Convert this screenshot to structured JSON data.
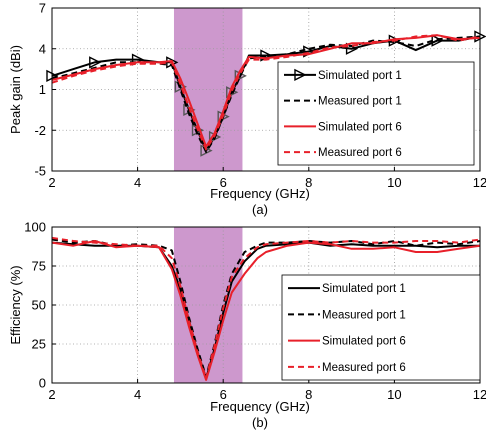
{
  "chart_data": [
    {
      "type": "line",
      "panel_label": "(a)",
      "xlabel": "Frequency (GHz)",
      "ylabel": "Peak gain (dBi)",
      "xlim": [
        2,
        12
      ],
      "ylim": [
        -5,
        7
      ],
      "xticks": [
        2,
        4,
        6,
        8,
        10,
        12
      ],
      "yticks": [
        -5,
        -2,
        1,
        4,
        7
      ],
      "grid": true,
      "legend_position": "bottom-right",
      "shaded_band": {
        "from": 4.85,
        "to": 6.45,
        "color": "#c486c4"
      },
      "series": [
        {
          "name": "Simulated port 1",
          "color": "#000000",
          "style": "solid",
          "marker": "triangle-right",
          "x": [
            2,
            2.5,
            3,
            3.5,
            4,
            4.5,
            4.8,
            5.0,
            5.2,
            5.4,
            5.6,
            5.8,
            6.0,
            6.2,
            6.4,
            6.6,
            7,
            7.5,
            8,
            8.5,
            9,
            9.5,
            10,
            10.5,
            11,
            11.5,
            12
          ],
          "y": [
            2.0,
            2.5,
            3.0,
            3.2,
            3.2,
            3.0,
            3.0,
            1.2,
            -0.5,
            -2.0,
            -3.5,
            -2.5,
            -1.0,
            0.8,
            2.0,
            3.5,
            3.5,
            3.6,
            3.8,
            4.2,
            4.0,
            4.4,
            4.6,
            3.9,
            4.6,
            4.6,
            4.9
          ]
        },
        {
          "name": "Measured port 1",
          "color": "#000000",
          "style": "dashed",
          "marker": "none",
          "x": [
            2,
            2.5,
            3,
            3.5,
            4,
            4.5,
            4.8,
            5.0,
            5.2,
            5.4,
            5.6,
            5.8,
            6.0,
            6.2,
            6.4,
            6.6,
            7,
            7.5,
            8,
            8.5,
            9,
            9.5,
            10,
            10.5,
            11,
            11.5,
            12
          ],
          "y": [
            1.8,
            2.2,
            2.6,
            3.0,
            3.0,
            2.9,
            2.8,
            1.0,
            -0.8,
            -2.3,
            -3.6,
            -2.6,
            -1.0,
            0.6,
            2.0,
            3.3,
            3.4,
            3.6,
            4.0,
            4.3,
            4.2,
            4.6,
            4.5,
            4.2,
            4.7,
            4.8,
            4.9
          ]
        },
        {
          "name": "Simulated port 6",
          "color": "#e8202a",
          "style": "solid",
          "marker": "none",
          "x": [
            2,
            2.5,
            3,
            3.5,
            4,
            4.5,
            4.8,
            5.0,
            5.2,
            5.4,
            5.6,
            5.8,
            6.0,
            6.2,
            6.4,
            6.6,
            7,
            7.5,
            8,
            8.5,
            9,
            9.5,
            10,
            10.5,
            11,
            11.5,
            12
          ],
          "y": [
            1.7,
            2.1,
            2.5,
            2.8,
            3.0,
            3.0,
            3.1,
            1.8,
            0.2,
            -1.5,
            -3.2,
            -2.2,
            -0.6,
            1.2,
            2.4,
            3.4,
            3.3,
            3.5,
            3.6,
            4.0,
            4.4,
            4.4,
            4.7,
            4.8,
            5.0,
            4.7,
            4.8
          ]
        },
        {
          "name": "Measured port 6",
          "color": "#e8202a",
          "style": "dashed",
          "marker": "none",
          "x": [
            2,
            2.5,
            3,
            3.5,
            4,
            4.5,
            4.8,
            5.0,
            5.2,
            5.4,
            5.6,
            5.8,
            6.0,
            6.2,
            6.4,
            6.6,
            7,
            7.5,
            8,
            8.5,
            9,
            9.5,
            10,
            10.5,
            11,
            11.5,
            12
          ],
          "y": [
            1.5,
            2.0,
            2.4,
            2.7,
            2.9,
            2.9,
            3.0,
            1.4,
            -0.3,
            -1.9,
            -3.4,
            -2.4,
            -0.9,
            0.9,
            2.2,
            3.2,
            3.2,
            3.4,
            3.7,
            4.1,
            4.2,
            4.5,
            4.6,
            4.9,
            5.0,
            4.6,
            4.9
          ]
        }
      ]
    },
    {
      "type": "line",
      "panel_label": "(b)",
      "xlabel": "Frequency (GHz)",
      "ylabel": "Efficiency (%)",
      "xlim": [
        2,
        12
      ],
      "ylim": [
        0,
        100
      ],
      "xticks": [
        2,
        4,
        6,
        8,
        10,
        12
      ],
      "yticks": [
        0,
        25,
        50,
        75,
        100
      ],
      "grid": true,
      "legend_position": "bottom-right",
      "shaded_band": {
        "from": 4.85,
        "to": 6.45,
        "color": "#c486c4"
      },
      "series": [
        {
          "name": "Simulated port 1",
          "color": "#000000",
          "style": "solid",
          "x": [
            2,
            2.5,
            3,
            3.5,
            4,
            4.5,
            4.8,
            5.0,
            5.2,
            5.4,
            5.6,
            5.8,
            6.0,
            6.2,
            6.5,
            6.8,
            7,
            7.5,
            8,
            8.5,
            9,
            9.5,
            10,
            10.5,
            11,
            11.5,
            12
          ],
          "y": [
            90,
            89,
            88,
            88,
            88,
            87,
            75,
            60,
            40,
            20,
            3,
            22,
            45,
            65,
            78,
            86,
            88,
            89,
            90,
            88,
            89,
            88,
            88,
            88,
            87,
            88,
            88
          ]
        },
        {
          "name": "Measured port 1",
          "color": "#000000",
          "style": "dashed",
          "x": [
            2,
            2.5,
            3,
            3.5,
            4,
            4.5,
            4.8,
            5.0,
            5.2,
            5.4,
            5.6,
            5.8,
            6.0,
            6.2,
            6.5,
            6.8,
            7,
            7.5,
            8,
            8.5,
            9,
            9.5,
            10,
            10.5,
            11,
            11.5,
            12
          ],
          "y": [
            92,
            90,
            91,
            88,
            89,
            88,
            85,
            65,
            42,
            22,
            4,
            25,
            50,
            70,
            84,
            88,
            90,
            90,
            91,
            90,
            91,
            89,
            91,
            88,
            90,
            89,
            91
          ]
        },
        {
          "name": "Simulated port 6",
          "color": "#e8202a",
          "style": "solid",
          "x": [
            2,
            2.5,
            3,
            3.5,
            4,
            4.5,
            4.8,
            5.0,
            5.2,
            5.4,
            5.6,
            5.8,
            6.0,
            6.2,
            6.5,
            6.8,
            7,
            7.5,
            8,
            8.5,
            9,
            9.5,
            10,
            10.5,
            11,
            11.5,
            12
          ],
          "y": [
            90,
            88,
            91,
            87,
            88,
            87,
            73,
            56,
            36,
            18,
            2,
            20,
            40,
            58,
            70,
            80,
            84,
            88,
            90,
            89,
            86,
            86,
            87,
            84,
            84,
            86,
            88
          ]
        },
        {
          "name": "Measured port 6",
          "color": "#e8202a",
          "style": "dashed",
          "x": [
            2,
            2.5,
            3,
            3.5,
            4,
            4.5,
            4.8,
            5.0,
            5.2,
            5.4,
            5.6,
            5.8,
            6.0,
            6.2,
            6.5,
            6.8,
            7,
            7.5,
            8,
            8.5,
            9,
            9.5,
            10,
            10.5,
            11,
            11.5,
            12
          ],
          "y": [
            93,
            91,
            90,
            89,
            88,
            88,
            80,
            62,
            40,
            20,
            3,
            24,
            48,
            68,
            80,
            87,
            89,
            90,
            91,
            90,
            91,
            90,
            90,
            91,
            91,
            90,
            92
          ]
        }
      ]
    }
  ]
}
